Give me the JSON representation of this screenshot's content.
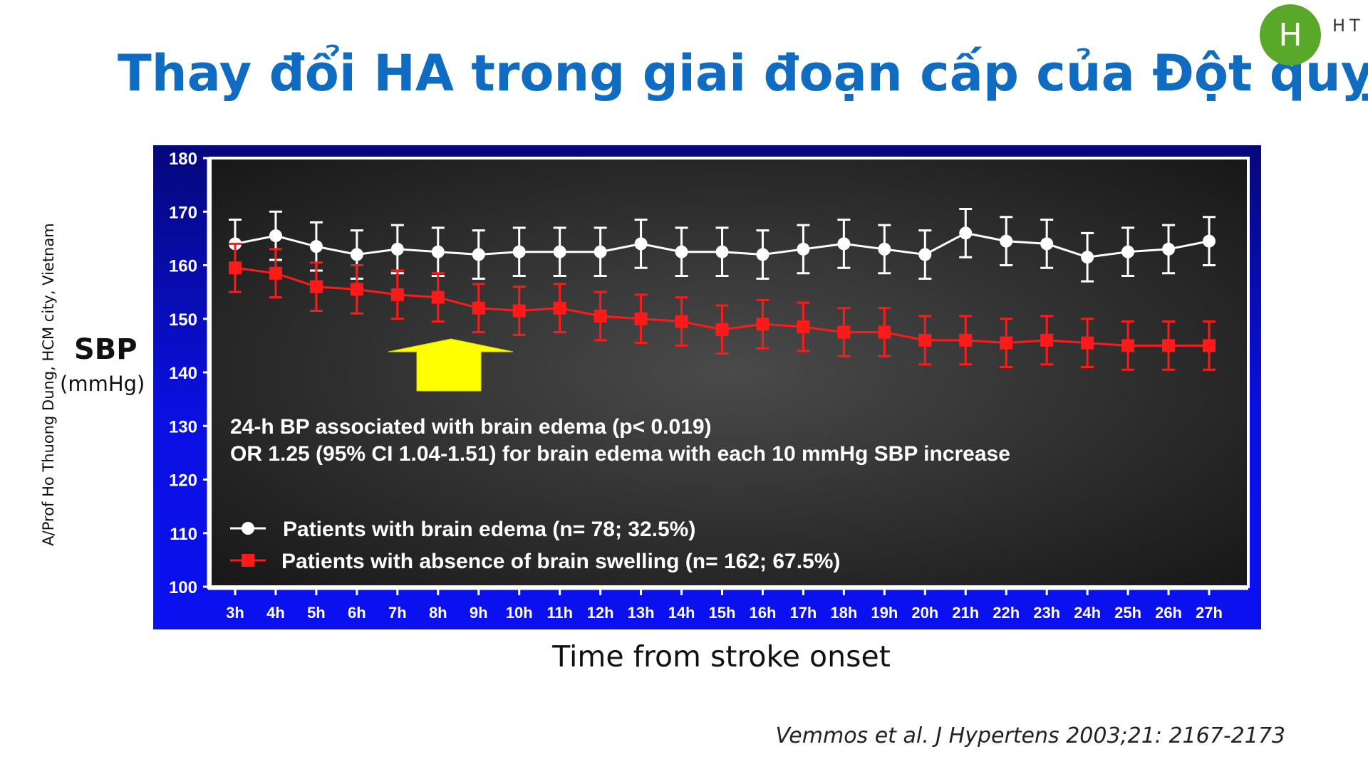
{
  "slide": {
    "title": "Thay đổi HA trong giai đoạn cấp của Đột quỵ",
    "logo_letter": "H",
    "logo_text": "HT",
    "side_credit": "A/Prof Ho Thuong Dung, HCM city, Vietnam",
    "y_axis_label": "SBP",
    "y_axis_unit": "(mmHg)",
    "x_axis_title": "Time from stroke onset",
    "citation": "Vemmos et al. J Hypertens 2003;21: 2167-2173"
  },
  "chart_data": {
    "type": "line",
    "title": "",
    "xlabel": "Time from stroke onset",
    "ylabel": "SBP (mmHg)",
    "ylim": [
      100,
      180
    ],
    "yticks": [
      "180",
      "170",
      "160",
      "150",
      "140",
      "130",
      "120",
      "110",
      "100"
    ],
    "categories": [
      "3h",
      "4h",
      "5h",
      "6h",
      "7h",
      "8h",
      "9h",
      "10h",
      "11h",
      "12h",
      "13h",
      "14h",
      "15h",
      "16h",
      "17h",
      "18h",
      "19h",
      "20h",
      "21h",
      "22h",
      "23h",
      "24h",
      "25h",
      "26h",
      "27h"
    ],
    "series": [
      {
        "name": "Patients with brain edema (n= 78; 32.5%)",
        "color": "#ffffff",
        "marker": "circle",
        "values": [
          164,
          165.5,
          163.5,
          162,
          163,
          162.5,
          162,
          162.5,
          162.5,
          162.5,
          164,
          162.5,
          162.5,
          162,
          163,
          164,
          163,
          162,
          166,
          164.5,
          164,
          161.5,
          162.5,
          163,
          164.5
        ],
        "errors": [
          4.5,
          4.5,
          4.5,
          4.5,
          4.5,
          4.5,
          4.5,
          4.5,
          4.5,
          4.5,
          4.5,
          4.5,
          4.5,
          4.5,
          4.5,
          4.5,
          4.5,
          4.5,
          4.5,
          4.5,
          4.5,
          4.5,
          4.5,
          4.5,
          4.5
        ]
      },
      {
        "name": "Patients with absence of brain swelling (n= 162; 67.5%)",
        "color": "#ff1a1a",
        "marker": "square",
        "values": [
          159.5,
          158.5,
          156,
          155.5,
          154.5,
          154,
          152,
          151.5,
          152,
          150.5,
          150,
          149.5,
          148,
          149,
          148.5,
          147.5,
          147.5,
          146,
          146,
          145.5,
          146,
          145.5,
          145,
          145,
          145
        ],
        "errors": [
          4.5,
          4.5,
          4.5,
          4.5,
          4.5,
          4.5,
          4.5,
          4.5,
          4.5,
          4.5,
          4.5,
          4.5,
          4.5,
          4.5,
          4.5,
          4.5,
          4.5,
          4.5,
          4.5,
          4.5,
          4.5,
          4.5,
          4.5,
          4.5,
          4.5
        ]
      }
    ],
    "annotations": [
      "24-h BP associated with brain edema (p< 0.019)",
      "OR 1.25 (95% CI 1.04-1.51) for brain edema with each 10 mmHg SBP increase"
    ],
    "arrow_color": "#ffff00",
    "frame_color": "#0a10e0",
    "plot_background": "#222222"
  }
}
